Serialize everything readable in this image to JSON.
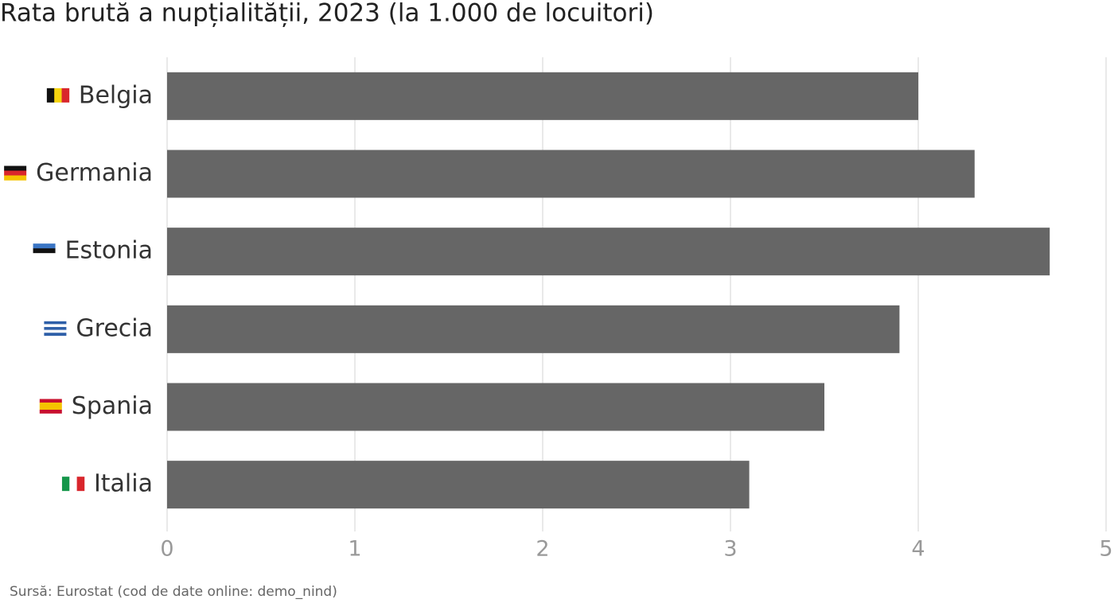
{
  "chart_data": {
    "type": "bar",
    "orientation": "horizontal",
    "title": "Rata brută a nupțialității, 2023 (la 1.000 de locuitori)",
    "source": "Sursă: Eurostat (cod de date online: demo_nind)",
    "categories": [
      "Belgia",
      "Germania",
      "Estonia",
      "Grecia",
      "Spania",
      "Italia"
    ],
    "values": [
      4.0,
      4.3,
      4.7,
      3.9,
      3.5,
      3.1
    ],
    "color": "#666666",
    "xlim": [
      0,
      5
    ],
    "xticks": [
      0,
      1,
      2,
      3,
      4,
      5
    ],
    "grid": true
  }
}
